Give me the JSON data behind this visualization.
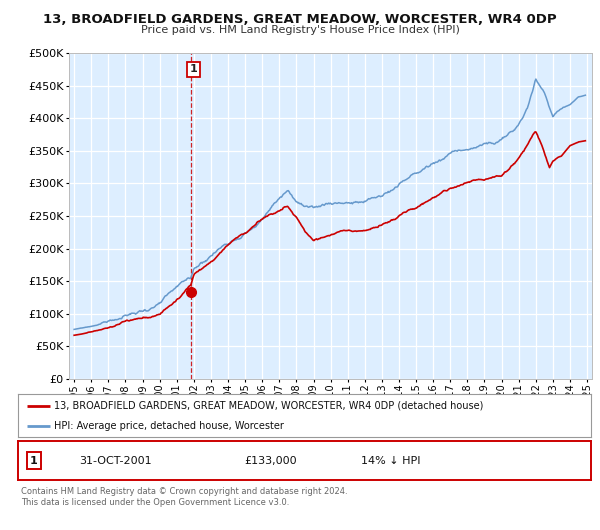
{
  "title": "13, BROADFIELD GARDENS, GREAT MEADOW, WORCESTER, WR4 0DP",
  "subtitle": "Price paid vs. HM Land Registry's House Price Index (HPI)",
  "legend_label_red": "13, BROADFIELD GARDENS, GREAT MEADOW, WORCESTER, WR4 0DP (detached house)",
  "legend_label_blue": "HPI: Average price, detached house, Worcester",
  "annotation_num": "1",
  "annotation_date": "31-OCT-2001",
  "annotation_price": "£133,000",
  "annotation_hpi": "14% ↓ HPI",
  "footer_line1": "Contains HM Land Registry data © Crown copyright and database right 2024.",
  "footer_line2": "This data is licensed under the Open Government Licence v3.0.",
  "vline_x": 2001.83,
  "sale_x": 2001.83,
  "sale_y": 133000,
  "red_color": "#cc0000",
  "blue_color": "#6699cc",
  "bg_color": "#ddeeff",
  "plot_bg": "#ffffff",
  "grid_color": "#ffffff",
  "spine_color": "#bbbbbb",
  "ylim": [
    0,
    500000
  ],
  "xlim": [
    1994.7,
    2025.3
  ],
  "yticks": [
    0,
    50000,
    100000,
    150000,
    200000,
    250000,
    300000,
    350000,
    400000,
    450000,
    500000
  ],
  "xticks": [
    1995,
    1996,
    1997,
    1998,
    1999,
    2000,
    2001,
    2002,
    2003,
    2004,
    2005,
    2006,
    2007,
    2008,
    2009,
    2010,
    2011,
    2012,
    2013,
    2014,
    2015,
    2016,
    2017,
    2018,
    2019,
    2020,
    2021,
    2022,
    2023,
    2024,
    2025
  ],
  "hpi_keypoints_x": [
    1995,
    1996,
    1997,
    1998,
    1999,
    2000,
    2001,
    2001.83,
    2002,
    2003,
    2004,
    2005,
    2006,
    2007,
    2007.5,
    2008,
    2009,
    2010,
    2011,
    2012,
    2013,
    2014,
    2015,
    2016,
    2017,
    2018,
    2019,
    2020,
    2021,
    2021.5,
    2022,
    2022.5,
    2023,
    2023.5,
    2024,
    2024.5,
    2024.9
  ],
  "hpi_keypoints_y": [
    76000,
    80000,
    88000,
    94000,
    102000,
    112000,
    130000,
    140000,
    155000,
    178000,
    200000,
    220000,
    240000,
    272000,
    285000,
    268000,
    248000,
    258000,
    262000,
    260000,
    268000,
    285000,
    300000,
    315000,
    332000,
    340000,
    345000,
    348000,
    368000,
    395000,
    440000,
    420000,
    390000,
    405000,
    415000,
    430000,
    435000
  ],
  "red_keypoints_x": [
    1995,
    1996,
    1997,
    1998,
    1999,
    2000,
    2001,
    2001.83,
    2002,
    2003,
    2004,
    2005,
    2006,
    2007,
    2007.5,
    2008,
    2008.5,
    2009,
    2010,
    2011,
    2012,
    2013,
    2014,
    2015,
    2016,
    2017,
    2018,
    2019,
    2020,
    2021,
    2022,
    2022.3,
    2022.8,
    2023,
    2023.5,
    2024,
    2024.5,
    2024.9
  ],
  "red_keypoints_y": [
    67000,
    70000,
    73000,
    78000,
    82000,
    90000,
    115000,
    133000,
    148000,
    168000,
    190000,
    208000,
    228000,
    242000,
    248000,
    232000,
    210000,
    196000,
    210000,
    215000,
    215000,
    222000,
    232000,
    242000,
    258000,
    272000,
    282000,
    288000,
    292000,
    320000,
    358000,
    342000,
    308000,
    318000,
    330000,
    350000,
    360000,
    365000
  ]
}
